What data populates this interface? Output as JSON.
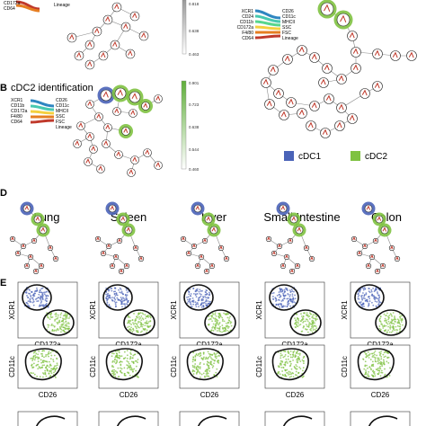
{
  "panel_b": {
    "letter": "B",
    "title": "cDC2 identification",
    "legend_left": [
      "XCR1",
      "CD11b",
      "CD172a",
      "F4/80",
      "CD64"
    ],
    "legend_right": [
      "CD26",
      "CD11c",
      "MHCII",
      "SSC",
      "FSC",
      "Lineage"
    ],
    "scale_ticks": [
      "0.901",
      "0.723",
      "0.638",
      "0.544",
      "0.460"
    ]
  },
  "panel_a_top": {
    "legend_left": [
      "CD172a",
      "CD64"
    ],
    "legend_right": [
      "Lineage"
    ],
    "scale_ticks": [
      "0.818",
      "0.638",
      "0.463"
    ]
  },
  "panel_c": {
    "legend_left": [
      "XCR1",
      "CD24",
      "CD11b",
      "CD172a",
      "F4/80",
      "CD64"
    ],
    "legend_right": [
      "CD26",
      "CD11c",
      "MHCII",
      "SSC",
      "FSC",
      "Lineage"
    ]
  },
  "key": {
    "cdc1_label": "cDC1",
    "cdc1_color": "#4a63b8",
    "cdc2_label": "cDC2",
    "cdc2_color": "#7fc241"
  },
  "panel_d": {
    "letter": "D",
    "tissues": [
      "Lung",
      "Spleen",
      "Liver",
      "Small Intestine",
      "Colon"
    ]
  },
  "panel_e": {
    "letter": "E",
    "row1": {
      "ylabel": "XCR1",
      "xlabel": "CD172a"
    },
    "row2": {
      "ylabel": "CD11c",
      "xlabel": "CD26"
    }
  }
}
